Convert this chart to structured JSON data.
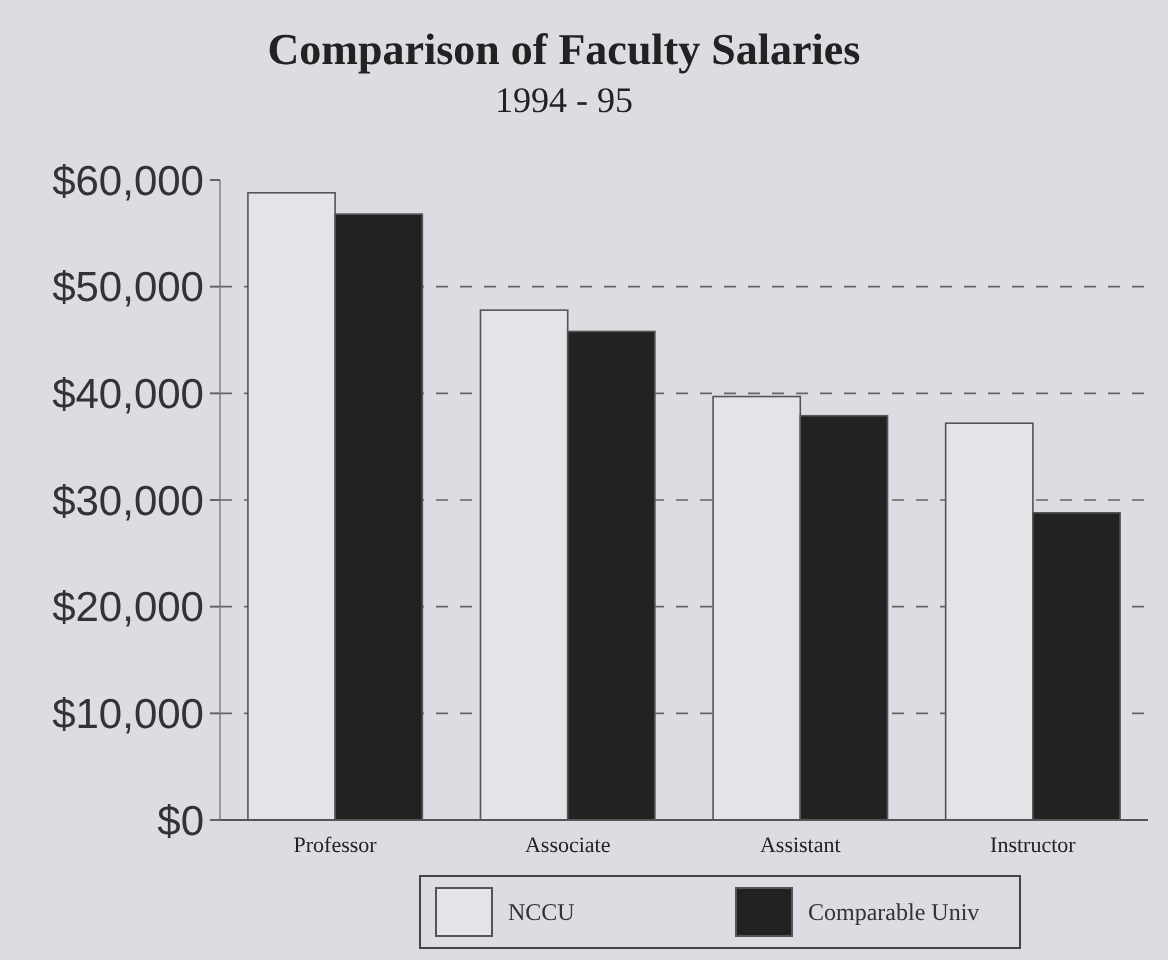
{
  "chart_data": {
    "type": "bar",
    "title": "Comparison of Faculty Salaries",
    "subtitle": "1994 - 95",
    "categories": [
      "Professor",
      "Associate",
      "Assistant",
      "Instructor"
    ],
    "series": [
      {
        "name": "NCCU",
        "color": "#e4e4e8",
        "values": [
          58800,
          47800,
          39700,
          37200
        ]
      },
      {
        "name": "Comparable Univ",
        "color": "#222222",
        "values": [
          56800,
          45800,
          37900,
          28800
        ]
      }
    ],
    "ylim": [
      0,
      60000
    ],
    "yticks": [
      {
        "value": 0,
        "label": "$0"
      },
      {
        "value": 10000,
        "label": "$10,000"
      },
      {
        "value": 20000,
        "label": "$20,000"
      },
      {
        "value": 30000,
        "label": "$30,000"
      },
      {
        "value": 40000,
        "label": "$40,000"
      },
      {
        "value": 50000,
        "label": "$50,000"
      },
      {
        "value": 60000,
        "label": "$60,000"
      }
    ],
    "grid": "y",
    "legend": "bottom"
  }
}
